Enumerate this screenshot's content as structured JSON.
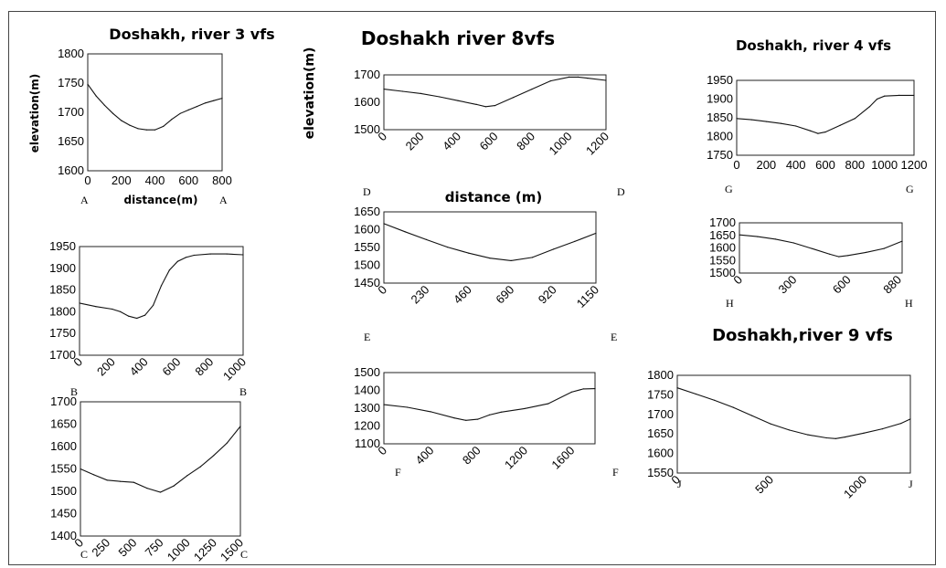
{
  "chart_data": [
    {
      "id": "p1",
      "type": "line",
      "title": "Doshakh, river 3 vfs",
      "xlabel": "distance(m)",
      "ylabel": "elevation(m)",
      "xlim": [
        0,
        800
      ],
      "ylim": [
        1600,
        1800
      ],
      "xticks": [
        "0",
        "200",
        "400",
        "600",
        "800"
      ],
      "yticks": [
        "1800",
        "1750",
        "1700",
        "1650",
        "1600"
      ],
      "rotated_xticks": false,
      "corner_left": "A",
      "corner_right": "A",
      "x": [
        0,
        50,
        100,
        150,
        200,
        250,
        300,
        350,
        400,
        450,
        500,
        550,
        600,
        650,
        700,
        750,
        800
      ],
      "y": [
        1748,
        1728,
        1712,
        1698,
        1686,
        1678,
        1672,
        1670,
        1670,
        1676,
        1688,
        1698,
        1704,
        1710,
        1716,
        1720,
        1724
      ]
    },
    {
      "id": "p2",
      "type": "line",
      "title": "",
      "xlabel": "",
      "ylabel": "",
      "xlim": [
        0,
        1000
      ],
      "ylim": [
        1700,
        1950
      ],
      "xticks": [
        "0",
        "200",
        "400",
        "600",
        "800",
        "1000"
      ],
      "yticks": [
        "1950",
        "1900",
        "1850",
        "1800",
        "1750",
        "1700"
      ],
      "rotated_xticks": true,
      "corner_left": "B",
      "corner_right": "B",
      "x": [
        0,
        100,
        200,
        250,
        300,
        350,
        400,
        450,
        500,
        550,
        600,
        650,
        700,
        800,
        900,
        1000
      ],
      "y": [
        1820,
        1812,
        1806,
        1800,
        1790,
        1785,
        1792,
        1815,
        1860,
        1896,
        1916,
        1925,
        1930,
        1933,
        1933,
        1931
      ]
    },
    {
      "id": "p3",
      "type": "line",
      "title": "",
      "xlabel": "",
      "ylabel": "",
      "xlim": [
        0,
        1500
      ],
      "ylim": [
        1400,
        1700
      ],
      "xticks": [
        "0",
        "250",
        "500",
        "750",
        "1000",
        "1250",
        "1500"
      ],
      "yticks": [
        "1700",
        "1650",
        "1600",
        "1550",
        "1500",
        "1450",
        "1400"
      ],
      "rotated_xticks": true,
      "corner_left": "C",
      "corner_right": "C",
      "x": [
        0,
        125,
        250,
        375,
        500,
        625,
        750,
        875,
        1000,
        1125,
        1250,
        1375,
        1500
      ],
      "y": [
        1550,
        1537,
        1525,
        1522,
        1520,
        1507,
        1498,
        1512,
        1535,
        1555,
        1580,
        1608,
        1645
      ]
    },
    {
      "id": "p4",
      "type": "line",
      "title": "Doshakh river 8vfs",
      "xlabel": "distance (m)",
      "ylabel": "elevation(m)",
      "xlim": [
        0,
        1200
      ],
      "ylim": [
        1500,
        1700
      ],
      "xticks": [
        "0",
        "200",
        "400",
        "600",
        "800",
        "1000",
        "1200"
      ],
      "yticks": [
        "1700",
        "1600",
        "1500"
      ],
      "rotated_xticks": true,
      "corner_left": "D",
      "corner_right": "D",
      "x": [
        0,
        100,
        200,
        300,
        400,
        500,
        550,
        600,
        700,
        800,
        900,
        1000,
        1050,
        1100,
        1200
      ],
      "y": [
        1648,
        1640,
        1632,
        1620,
        1606,
        1592,
        1584,
        1588,
        1618,
        1648,
        1678,
        1692,
        1692,
        1688,
        1680
      ]
    },
    {
      "id": "p5",
      "type": "line",
      "title": "",
      "xlabel": "",
      "ylabel": "",
      "xlim": [
        0,
        1150
      ],
      "ylim": [
        1450,
        1650
      ],
      "xticks": [
        "0",
        "230",
        "460",
        "690",
        "920",
        "1150"
      ],
      "yticks": [
        "1650",
        "1600",
        "1550",
        "1500",
        "1450"
      ],
      "rotated_xticks": true,
      "corner_left": "E",
      "corner_right": "E",
      "x": [
        0,
        115,
        230,
        345,
        460,
        575,
        690,
        805,
        920,
        1035,
        1150
      ],
      "y": [
        1617,
        1594,
        1572,
        1551,
        1534,
        1520,
        1513,
        1522,
        1545,
        1567,
        1590
      ]
    },
    {
      "id": "p6",
      "type": "line",
      "title": "",
      "xlabel": "",
      "ylabel": "",
      "xlim": [
        0,
        1800
      ],
      "ylim": [
        1100,
        1500
      ],
      "xticks": [
        "0",
        "400",
        "800",
        "1200",
        "1600"
      ],
      "yticks": [
        "1500",
        "1400",
        "1300",
        "1200",
        "1100"
      ],
      "rotated_xticks": true,
      "corner_left": "F",
      "corner_right": "F",
      "x": [
        0,
        200,
        400,
        600,
        700,
        800,
        900,
        1000,
        1200,
        1400,
        1600,
        1700,
        1800
      ],
      "y": [
        1320,
        1305,
        1280,
        1245,
        1232,
        1238,
        1262,
        1278,
        1298,
        1325,
        1390,
        1408,
        1410
      ]
    },
    {
      "id": "p7",
      "type": "line",
      "title": "Doshakh, river 4 vfs",
      "xlabel": "",
      "ylabel": "",
      "xlim": [
        0,
        1200
      ],
      "ylim": [
        1750,
        1950
      ],
      "xticks": [
        "0",
        "200",
        "400",
        "600",
        "800",
        "1000",
        "1200"
      ],
      "yticks": [
        "1950",
        "1900",
        "1850",
        "1800",
        "1750"
      ],
      "rotated_xticks": false,
      "corner_left": "G",
      "corner_right": "G",
      "x": [
        0,
        100,
        200,
        300,
        400,
        500,
        550,
        600,
        700,
        800,
        900,
        950,
        1000,
        1100,
        1200
      ],
      "y": [
        1848,
        1845,
        1840,
        1835,
        1828,
        1815,
        1808,
        1812,
        1830,
        1848,
        1880,
        1900,
        1908,
        1910,
        1910
      ]
    },
    {
      "id": "p8",
      "type": "line",
      "title": "",
      "xlabel": "",
      "ylabel": "",
      "xlim": [
        0,
        900
      ],
      "ylim": [
        1500,
        1700
      ],
      "xticks": [
        "0",
        "300",
        "600",
        "880"
      ],
      "yticks": [
        "1700",
        "1650",
        "1600",
        "1550",
        "1500"
      ],
      "rotated_xticks": true,
      "corner_left": "H",
      "corner_right": "H",
      "x": [
        0,
        100,
        200,
        300,
        400,
        500,
        550,
        600,
        700,
        800,
        900
      ],
      "y": [
        1652,
        1645,
        1635,
        1620,
        1598,
        1575,
        1565,
        1570,
        1582,
        1598,
        1627
      ]
    },
    {
      "id": "p9",
      "type": "line",
      "title": "Doshakh,river 9 vfs",
      "xlabel": "",
      "ylabel": "",
      "xlim": [
        0,
        1250
      ],
      "ylim": [
        1550,
        1800
      ],
      "xticks": [
        "0",
        "500",
        "1000"
      ],
      "yticks": [
        "1800",
        "1750",
        "1700",
        "1650",
        "1600",
        "1550"
      ],
      "rotated_xticks": true,
      "corner_left": "J",
      "corner_right": "J",
      "x": [
        0,
        100,
        200,
        300,
        400,
        500,
        600,
        700,
        800,
        850,
        900,
        1000,
        1100,
        1200,
        1250
      ],
      "y": [
        1768,
        1752,
        1736,
        1718,
        1697,
        1676,
        1660,
        1648,
        1640,
        1638,
        1642,
        1652,
        1663,
        1677,
        1688
      ]
    }
  ]
}
